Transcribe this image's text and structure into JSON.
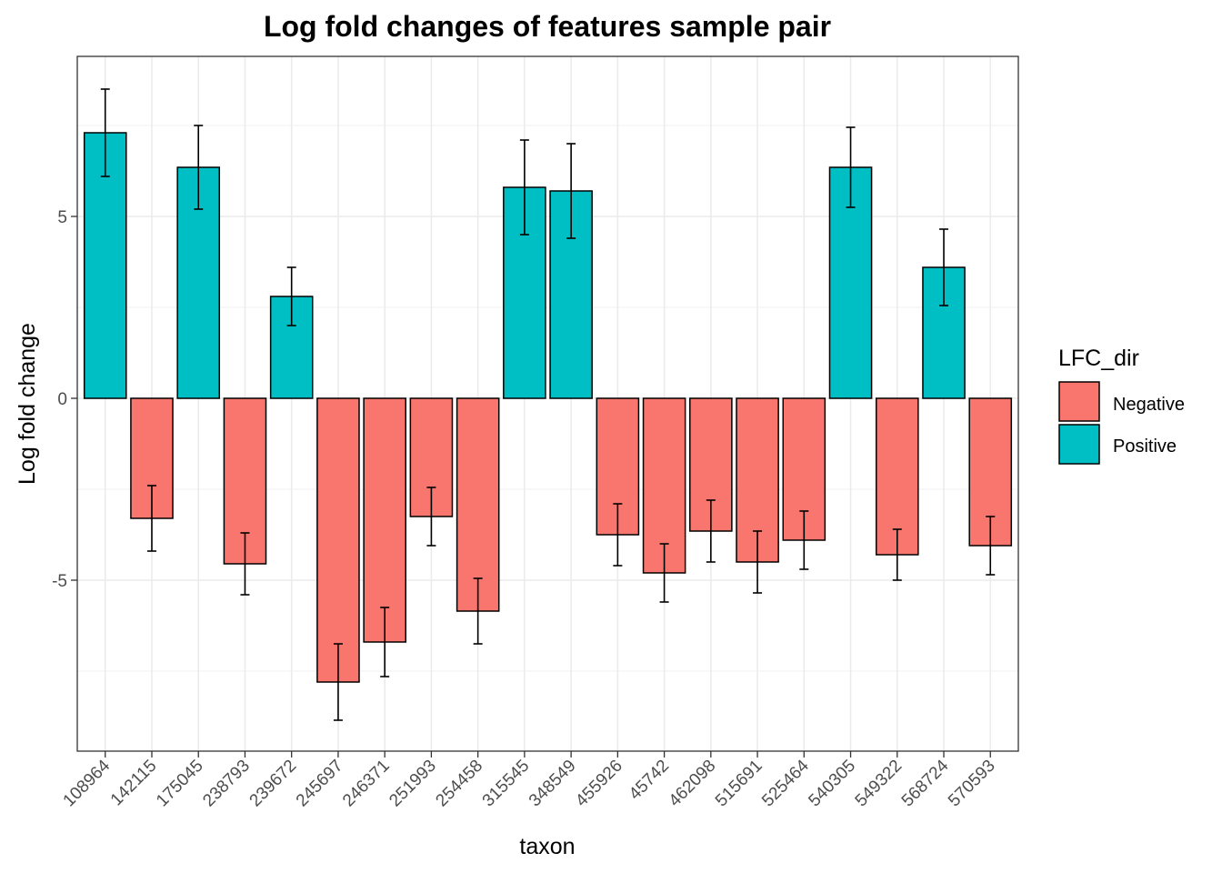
{
  "chart_data": {
    "type": "bar",
    "title": "Log fold changes of features sample pair",
    "xlabel": "taxon",
    "ylabel": "Log fold change",
    "categories": [
      "108964",
      "142115",
      "175045",
      "238793",
      "239672",
      "245697",
      "246371",
      "251993",
      "254458",
      "315545",
      "348549",
      "455926",
      "45742",
      "462098",
      "515691",
      "525464",
      "540305",
      "549322",
      "568724",
      "570593"
    ],
    "values": [
      7.3,
      -3.3,
      6.35,
      -4.55,
      2.8,
      -7.8,
      -6.7,
      -3.25,
      -5.85,
      5.8,
      5.7,
      -3.75,
      -4.8,
      -3.65,
      -4.5,
      -3.9,
      6.35,
      -4.3,
      3.6,
      -4.05
    ],
    "error": [
      1.2,
      0.9,
      1.15,
      0.85,
      0.8,
      1.05,
      0.95,
      0.8,
      0.9,
      1.3,
      1.3,
      0.85,
      0.8,
      0.85,
      0.85,
      0.8,
      1.1,
      0.7,
      1.05,
      0.8
    ],
    "direction": [
      "Positive",
      "Negative",
      "Positive",
      "Negative",
      "Positive",
      "Negative",
      "Negative",
      "Negative",
      "Negative",
      "Positive",
      "Positive",
      "Negative",
      "Negative",
      "Negative",
      "Negative",
      "Negative",
      "Positive",
      "Negative",
      "Positive",
      "Negative"
    ],
    "y_ticks": [
      -5,
      0,
      5
    ],
    "ylim": [
      -9.7,
      9.4
    ],
    "grid": true,
    "legend": {
      "title": "LFC_dir",
      "position": "right",
      "entries": [
        {
          "label": "Negative",
          "color": "#f8766d"
        },
        {
          "label": "Positive",
          "color": "#00bfc4"
        }
      ]
    }
  }
}
